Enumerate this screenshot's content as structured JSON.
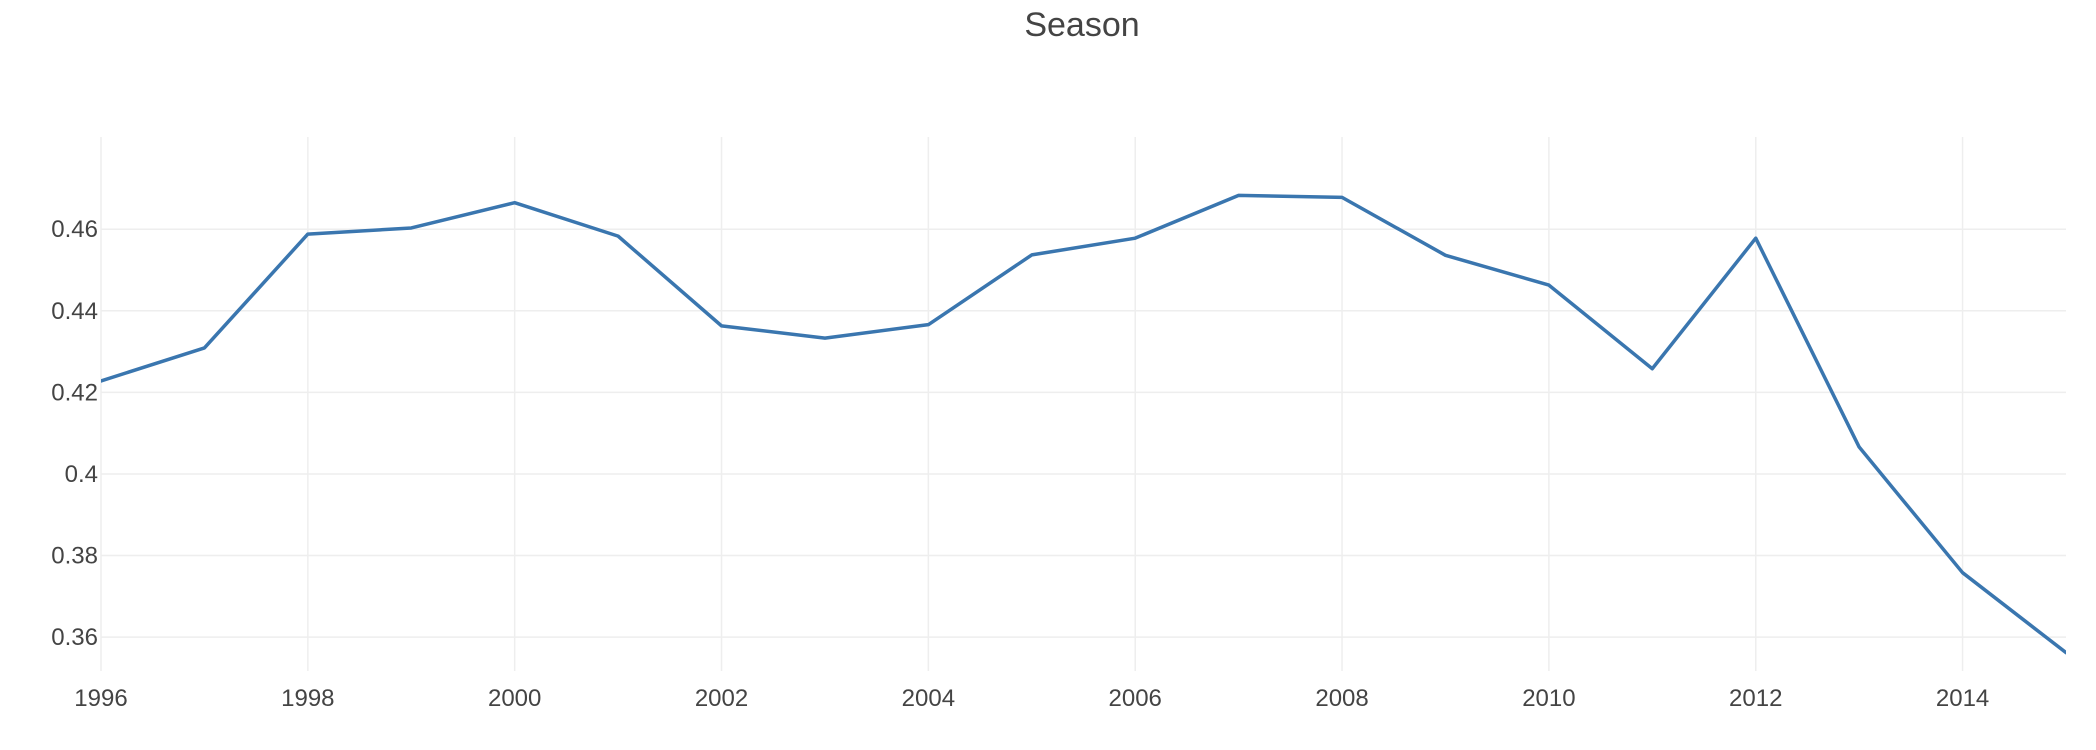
{
  "chart_data": {
    "type": "line",
    "title": "Season",
    "xlabel": "",
    "ylabel": "",
    "x": [
      1996,
      1997,
      1998,
      1999,
      2000,
      2001,
      2002,
      2003,
      2004,
      2005,
      2006,
      2007,
      2008,
      2009,
      2010,
      2011,
      2012,
      2013,
      2014,
      2015
    ],
    "series": [
      {
        "color": "#3a76af",
        "values": [
          0.4228,
          0.4309,
          0.4588,
          0.4603,
          0.4665,
          0.4583,
          0.4363,
          0.4333,
          0.4366,
          0.4537,
          0.4578,
          0.4683,
          0.4678,
          0.4536,
          0.4463,
          0.4258,
          0.4578,
          0.4066,
          0.3758,
          0.3562
        ]
      }
    ],
    "xlim": [
      1996,
      2015
    ],
    "ylim": [
      0.3517,
      0.4826
    ],
    "xticks": [
      1996,
      1998,
      2000,
      2002,
      2004,
      2006,
      2008,
      2010,
      2012,
      2014
    ],
    "xtick_labels": [
      "1996",
      "1998",
      "2000",
      "2002",
      "2004",
      "2006",
      "2008",
      "2010",
      "2012",
      "2014"
    ],
    "yticks": [
      0.36,
      0.38,
      0.4,
      0.42,
      0.44,
      0.46
    ],
    "ytick_labels": [
      "0.36",
      "0.38",
      "0.4",
      "0.42",
      "0.44",
      "0.46"
    ],
    "grid": true,
    "legend": "none",
    "colors": {
      "line": "#3a76af",
      "grid": "#eeeeee",
      "text": "#444444"
    }
  }
}
